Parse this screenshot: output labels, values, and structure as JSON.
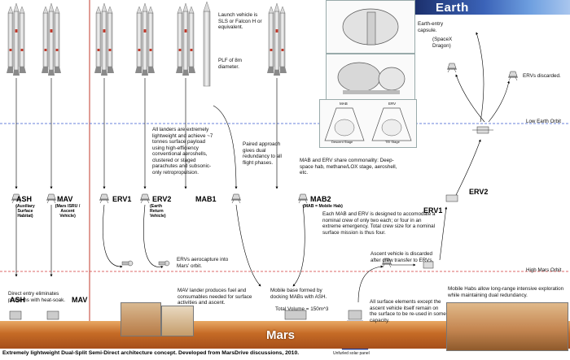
{
  "earth_title": "Earth",
  "mars_title": "Mars",
  "low_earth_orbit": "Low Earth Orbit",
  "high_mars_orbit": "High Mars Orbit",
  "caption": "Extremely lightweight Dual-Split Semi-Direct architecture concept. Developed from MarsDrive discussions, 2010.",
  "notes": {
    "launch_vehicle": "Launch vehicle is SLS or Falcon H or equivalent.",
    "plf": "PLF of 8m diameter.",
    "earth_entry": "Earth-entry capsule.",
    "spacex_dragon": "(SpaceX Dragon)",
    "ervs_discarded": "ERVs discarded.",
    "landers": "All landers are extremely lightweight and achieve ~7 tonnes surface payload using high-efficiency conventional aeroshells, clustered or staged parachutes and subsonic-only retropropulsion.",
    "paired": "Paired approach gives dual redundancy to all flight phases.",
    "commonality": "MAB and ERV share commonality: Deep-space hab, methane/LOX stage, aeroshell, etc.",
    "mab_crew": "Each MAB and ERV is designed to accomodate a nominal crew of only two each; or four in an extreme emergency. Total crew size for a nominal surface mission is thus four.",
    "aerocapture": "ERVs aerocapture into Mars' orbit.",
    "ascent_discarded": "Ascent vehicle is discarded after crew transfer to ERVs.",
    "direct_entry": "Direct entry eliminates problems with heat-soak.",
    "mav_lander": "MAV lander produces fuel and consumables needed for surface activities and ascent.",
    "mobile_base": "Mobile base formed by docking MABs with ASH.",
    "total_volume": "Total Volume = 150m^3",
    "surface_elements": "All surface elements except the ascent vehicle itself remain on the surface to be re-used in some capacity.",
    "mobile_habs": "Mobile Habs allow long-range intensive exploration while maintaining dual redundancy.",
    "solar_panel": "Unfurled solar panel"
  },
  "labels": {
    "ash": "ASH",
    "ash_sub": "(Auxiliary Surface Habitat)",
    "mav": "MAV",
    "mav_sub": "(Mars ISRU / Ascent Vehicle)",
    "erv1": "ERV1",
    "erv2": "ERV2",
    "erv2_sub": "(Earth Return Vehicle)",
    "mab1": "MAB1",
    "mab2": "MAB2",
    "mab2_sub": "(MAB = Mobile Hab)",
    "erv2_right": "ERV2",
    "erv1_right": "ERV1",
    "ash_surface": "ASH",
    "mav_surface": "MAV"
  },
  "panel_labels": {
    "left": "MAB",
    "right": "ERV",
    "left_bottom": "Descent Stage",
    "right_bottom": "TEI Stage"
  },
  "colors": {
    "leo_line": "#3a5bd0",
    "hmo_line": "#d23a3a",
    "divider": "#c0392b",
    "rocket": "#e7e7e7",
    "rocket_stripe": "#c0392b"
  }
}
